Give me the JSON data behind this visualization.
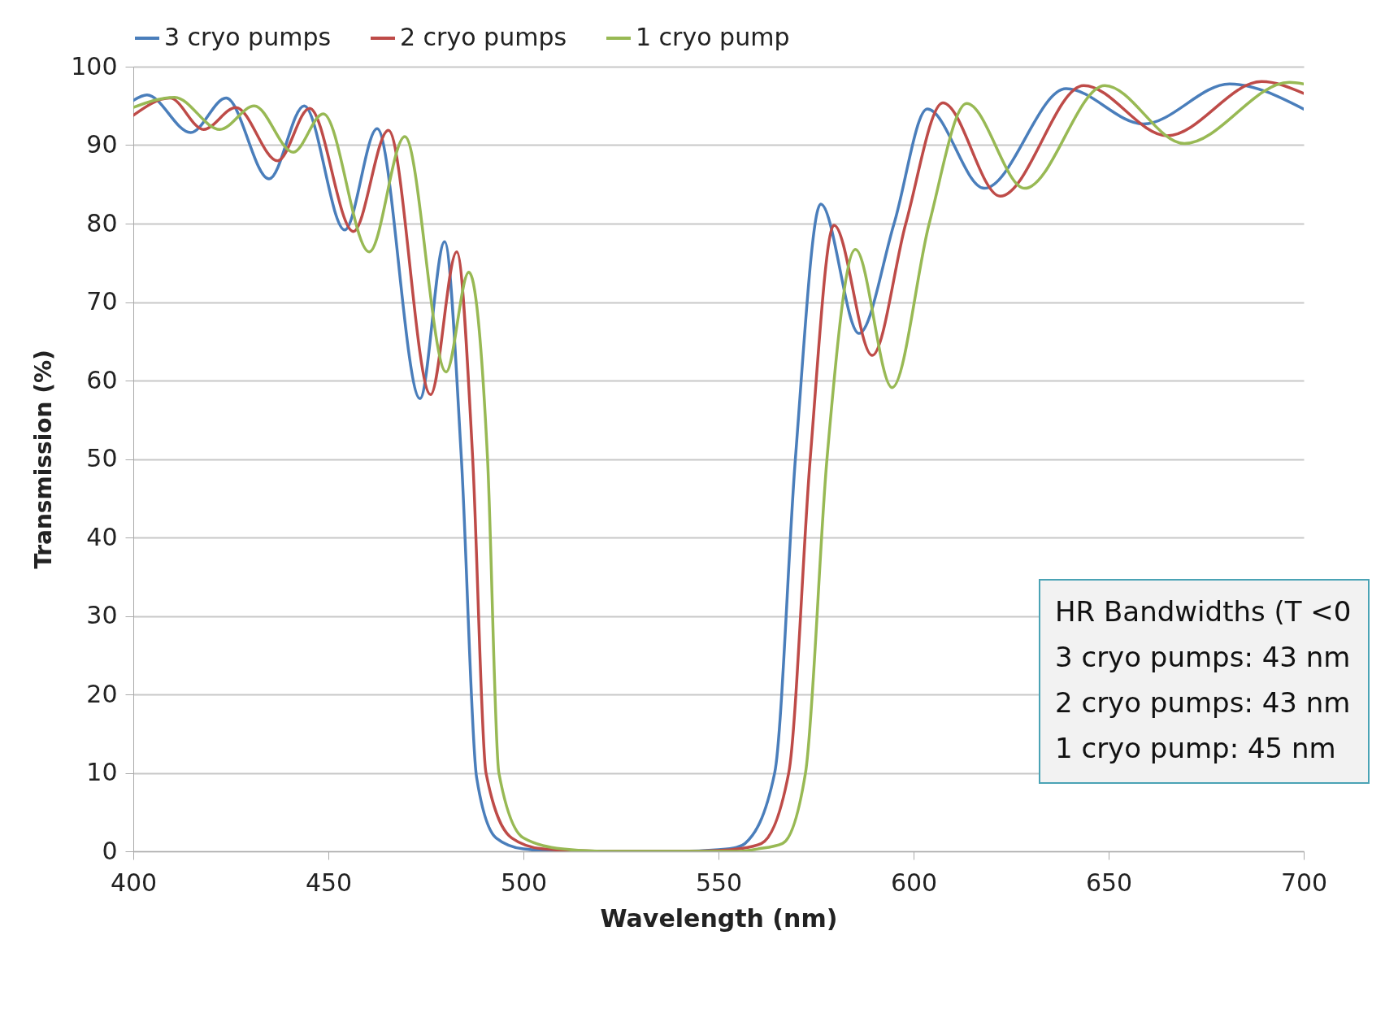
{
  "chart_data": {
    "type": "line",
    "xlabel": "Wavelength (nm)",
    "ylabel": "Transmission (%)",
    "xlim": [
      400,
      700
    ],
    "ylim": [
      0,
      100
    ],
    "xticks": [
      400,
      450,
      500,
      550,
      600,
      650,
      700
    ],
    "yticks": [
      0,
      10,
      20,
      30,
      40,
      50,
      60,
      70,
      80,
      90,
      100
    ],
    "grid": "y",
    "legend": "top",
    "line_style": "solid",
    "series": [
      {
        "name": "3 cryo pumps",
        "color": "#4a7ebb",
        "x": [
          400,
          403.5,
          414.7,
          423.8,
          434.8,
          443.8,
          454.2,
          462.5,
          473.5,
          479.8,
          484.1,
          488,
          493,
          500,
          510,
          520,
          530,
          540,
          550,
          554.6,
          556.8,
          564.4,
          569.7,
          576.2,
          586,
          595,
          603.5,
          618.1,
          639.1,
          658.9,
          681,
          700
        ],
        "values": [
          95.7,
          96.4,
          91.6,
          96,
          85.7,
          95,
          79.2,
          92.1,
          57.7,
          77.7,
          50,
          9.4,
          1.7,
          0.3,
          0,
          0,
          0,
          0,
          0.2,
          0.5,
          1,
          10,
          50,
          82.5,
          66,
          80,
          94.6,
          84.5,
          97.2,
          92.7,
          97.8,
          94.6
        ]
      },
      {
        "name": "2 cryo pumps",
        "color": "#be4b48",
        "x": [
          400,
          409.4,
          418,
          426.3,
          437,
          445.2,
          456.4,
          465.4,
          476.2,
          482.9,
          487,
          490.4,
          497,
          505,
          520,
          540,
          550,
          555,
          561,
          568,
          573.5,
          579.6,
          589.4,
          598,
          607.5,
          622.2,
          643.6,
          665,
          689.2,
          700
        ],
        "values": [
          93.8,
          96,
          92,
          94.8,
          88,
          94.7,
          79,
          91.9,
          58.2,
          76.4,
          50,
          10,
          1.7,
          0.3,
          0,
          0,
          0.1,
          0.3,
          1,
          10,
          50,
          79.8,
          63.2,
          80,
          95.4,
          83.5,
          97.6,
          91.2,
          98.1,
          96.6
        ]
      },
      {
        "name": "1 cryo pump",
        "color": "#98b954",
        "x": [
          400,
          410.6,
          422.2,
          431,
          441,
          448.7,
          460.5,
          469.6,
          480.2,
          486,
          490.8,
          493.7,
          500,
          510,
          520,
          540,
          555,
          560,
          566.4,
          572.3,
          577.8,
          585.1,
          594.5,
          604,
          613.6,
          628.5,
          649,
          669.4,
          696.3,
          700
        ],
        "values": [
          94.8,
          96.1,
          92,
          95,
          89.1,
          94,
          76.4,
          91.1,
          61.1,
          73.8,
          50,
          10,
          1.7,
          0.3,
          0,
          0,
          0,
          0.3,
          1,
          10,
          50,
          76.7,
          59.1,
          80,
          95.3,
          84.5,
          97.6,
          90.2,
          98,
          97.8
        ]
      }
    ],
    "annotations": [
      "HR Bandwidths (T <0",
      "3 cryo pumps: 43 nm",
      "2 cryo pumps: 43 nm",
      "1 cryo pump: 45 nm"
    ]
  }
}
